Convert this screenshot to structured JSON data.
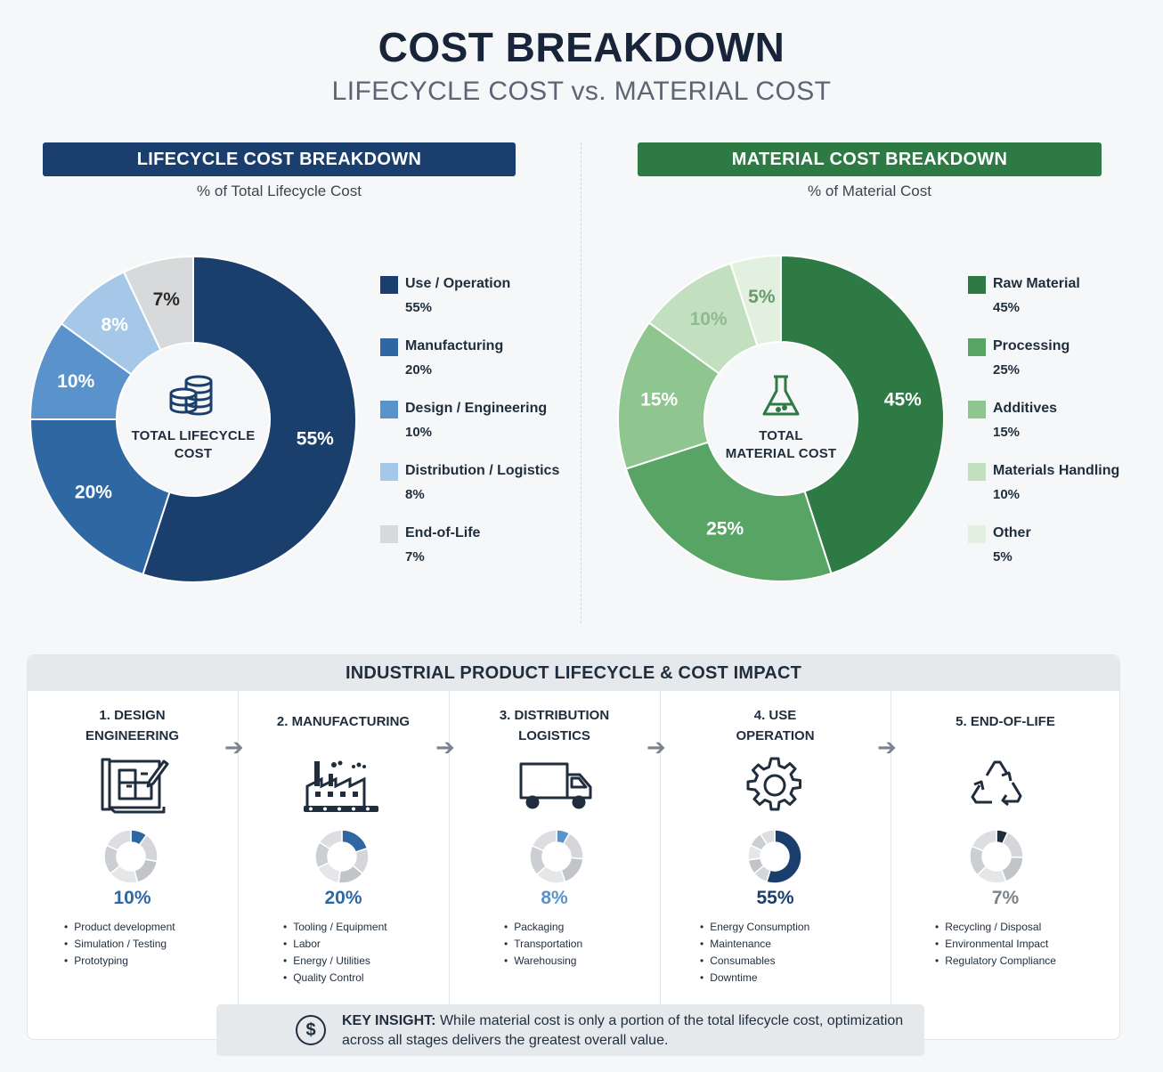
{
  "header": {
    "title": "COST BREAKDOWN",
    "subtitle": "LIFECYCLE COST vs. MATERIAL COST"
  },
  "chart_data": [
    {
      "type": "pie",
      "title": "LIFECYCLE COST BREAKDOWN",
      "subtitle": "% of Total Lifecycle Cost",
      "center_label": "TOTAL LIFECYCLE COST",
      "center_icon": "coin-stack-icon",
      "categories": [
        "Use / Operation",
        "Manufacturing",
        "Design / Engineering",
        "Distribution / Logistics",
        "End-of-Life"
      ],
      "values": [
        55,
        20,
        10,
        8,
        7
      ],
      "value_labels": [
        "55%",
        "20%",
        "10%",
        "8%",
        "7%"
      ],
      "colors": [
        "#1b3f6d",
        "#2f67a3",
        "#5a93cc",
        "#a5c8e8",
        "#d8d9db"
      ],
      "label_colors": [
        "#ffffff",
        "#ffffff",
        "#ffffff",
        "#ffffff",
        "#2b2b2b"
      ],
      "legend_position": "right"
    },
    {
      "type": "pie",
      "title": "MATERIAL COST BREAKDOWN",
      "subtitle": "% of Material Cost",
      "center_label": "TOTAL MATERIAL COST",
      "center_icon": "flask-icon",
      "categories": [
        "Raw Material",
        "Processing",
        "Additives",
        "Materials Handling",
        "Other"
      ],
      "values": [
        45,
        25,
        15,
        10,
        5
      ],
      "value_labels": [
        "45%",
        "25%",
        "15%",
        "10%",
        "5%"
      ],
      "colors": [
        "#2e7a45",
        "#58a465",
        "#8fc68f",
        "#c2e0c0",
        "#e2f0df"
      ],
      "label_colors": [
        "#ffffff",
        "#ffffff",
        "#ffffff",
        "#8fb98f",
        "#6a9a6a"
      ],
      "legend_position": "right"
    }
  ],
  "lifecycle": {
    "heading": "INDUSTRIAL PRODUCT LIFECYCLE & COST IMPACT",
    "stages": [
      {
        "title_lines": [
          "1. DESIGN",
          "ENGINEERING"
        ],
        "icon": "blueprint-icon",
        "percent": "10%",
        "value": 10,
        "color": "#2f67a3",
        "items": [
          "Product development",
          "Simulation / Testing",
          "Prototyping"
        ]
      },
      {
        "title_lines": [
          "2. MANUFACTURING"
        ],
        "icon": "factory-icon",
        "percent": "20%",
        "value": 20,
        "color": "#2f67a3",
        "items": [
          "Tooling / Equipment",
          "Labor",
          "Energy / Utilities",
          "Quality Control"
        ]
      },
      {
        "title_lines": [
          "3. DISTRIBUTION",
          "LOGISTICS"
        ],
        "icon": "truck-icon",
        "percent": "8%",
        "value": 8,
        "color": "#5a93cc",
        "items": [
          "Packaging",
          "Transportation",
          "Warehousing"
        ]
      },
      {
        "title_lines": [
          "4. USE",
          "OPERATION"
        ],
        "icon": "gear-icon",
        "percent": "55%",
        "value": 55,
        "color": "#1b3f6d",
        "items": [
          "Energy Consumption",
          "Maintenance",
          "Consumables",
          "Downtime"
        ]
      },
      {
        "title_lines": [
          "5. END-OF-LIFE"
        ],
        "icon": "recycle-icon",
        "percent": "7%",
        "value": 7,
        "color": "#1f2d3d",
        "items": [
          "Recycling / Disposal",
          "Environmental Impact",
          "Regulatory Compliance"
        ]
      }
    ],
    "arrow_glyph": "➔"
  },
  "insight": {
    "icon": "dollar-icon",
    "label": "KEY INSIGHT:",
    "text": "While material cost is only a portion of the total lifecycle cost, optimization across all stages delivers the greatest overall value."
  }
}
